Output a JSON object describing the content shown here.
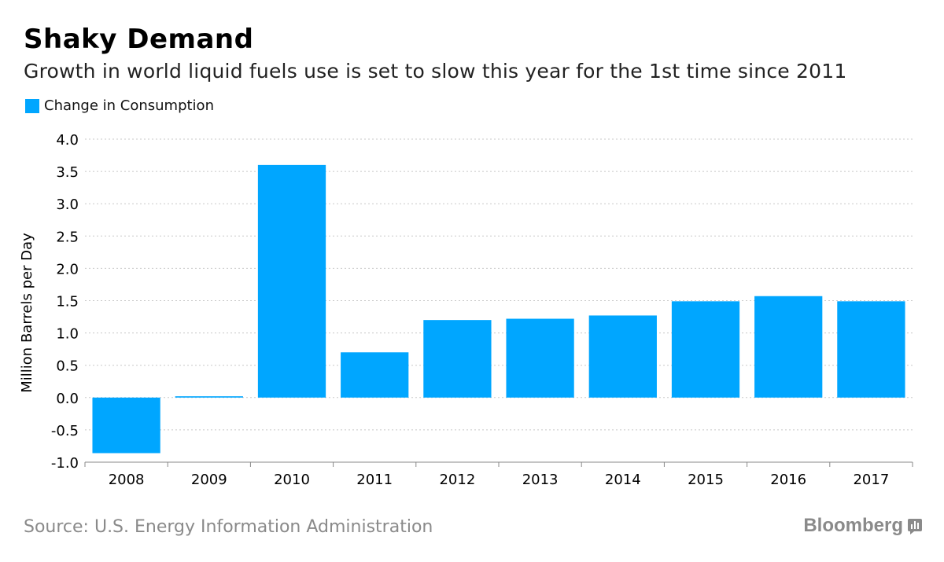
{
  "header": {
    "title": "Shaky Demand",
    "subtitle": "Growth in world liquid fuels use is set to slow this year for the 1st time since 2011"
  },
  "footer": {
    "source": "Source: U.S. Energy Information Administration",
    "brand": "Bloomberg"
  },
  "colors": {
    "bar": "#00a6ff",
    "grid": "#c8c8c8",
    "axis": "#888888"
  },
  "chart_data": {
    "type": "bar",
    "title": "Shaky Demand",
    "subtitle": "Growth in world liquid fuels use is set to slow this year for the 1st time since 2011",
    "xlabel": "",
    "ylabel": "Million Barrels per Day",
    "ylim": [
      -1.0,
      4.0
    ],
    "yticks": [
      -1.0,
      -0.5,
      0.0,
      0.5,
      1.0,
      1.5,
      2.0,
      2.5,
      3.0,
      3.5,
      4.0
    ],
    "ytick_labels": [
      "-1.0",
      "-0.5",
      "0.0",
      "0.5",
      "1.0",
      "1.5",
      "2.0",
      "2.5",
      "3.0",
      "3.5",
      "4.0"
    ],
    "grid": true,
    "legend": "top-left",
    "categories": [
      "2008",
      "2009",
      "2010",
      "2011",
      "2012",
      "2013",
      "2014",
      "2015",
      "2016",
      "2017"
    ],
    "series": [
      {
        "name": "Change in Consumption",
        "values": [
          -0.86,
          0.02,
          3.6,
          0.7,
          1.2,
          1.22,
          1.27,
          1.49,
          1.57,
          1.49
        ]
      }
    ]
  }
}
